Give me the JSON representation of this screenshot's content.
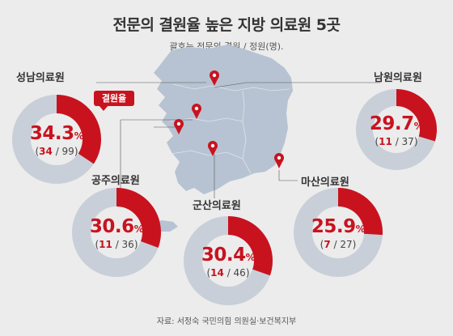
{
  "title": "전문의 결원율 높은 지방 의료원 5곳",
  "subtitle": "괄호는 전문의 결원 / 정원(명).",
  "source": "자료: 서정숙 국민의힘 의원실·보건복지부",
  "badge": "결원율",
  "colors": {
    "accent": "#c8131f",
    "ring": "#c9cfd8",
    "map": "#b7c3d2"
  },
  "chart_data": [
    {
      "type": "pie",
      "name": "성남의료원",
      "percent": "34.3",
      "unit": "%",
      "vacant": "34",
      "quota": "99",
      "vacancy_rate": 34.3
    },
    {
      "type": "pie",
      "name": "남원의료원",
      "percent": "29.7",
      "unit": "%",
      "vacant": "11",
      "quota": "37",
      "vacancy_rate": 29.7
    },
    {
      "type": "pie",
      "name": "공주의료원",
      "percent": "30.6",
      "unit": "%",
      "vacant": "11",
      "quota": "36",
      "vacancy_rate": 30.6
    },
    {
      "type": "pie",
      "name": "군산의료원",
      "percent": "30.4",
      "unit": "%",
      "vacant": "14",
      "quota": "46",
      "vacancy_rate": 30.4
    },
    {
      "type": "pie",
      "name": "마산의료원",
      "percent": "25.9",
      "unit": "%",
      "vacant": "7",
      "quota": "27",
      "vacancy_rate": 25.9
    }
  ]
}
